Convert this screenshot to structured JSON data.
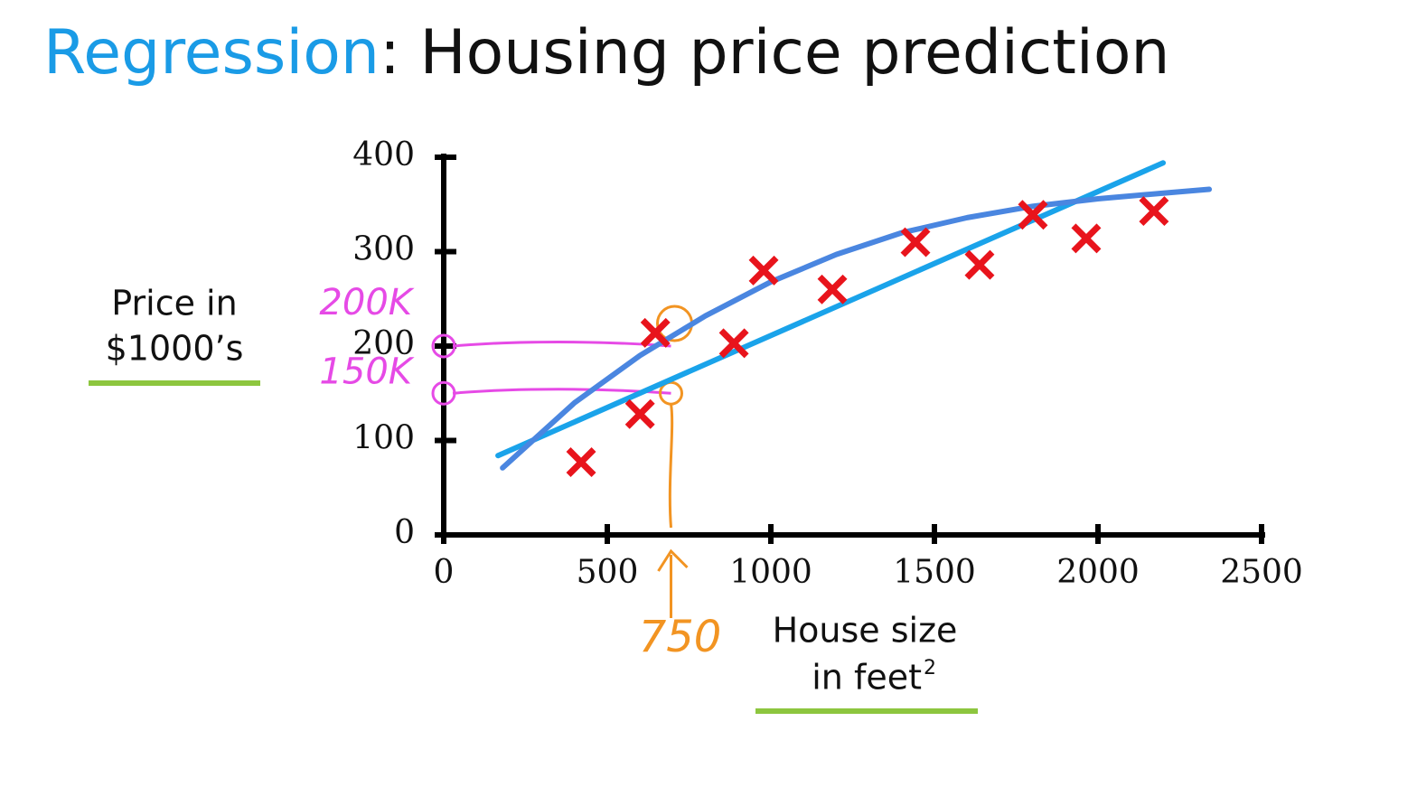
{
  "chart_data": {
    "type": "scatter",
    "title": [
      "Regression",
      ": Housing price prediction"
    ],
    "title_colors": [
      "#1a9be6",
      "#111111"
    ],
    "y_label": [
      "Price in",
      "$1000’s"
    ],
    "x_label": [
      "House size",
      "in feet",
      "2"
    ],
    "xlim": [
      0,
      2500
    ],
    "ylim": [
      0,
      400
    ],
    "xticks": [
      0,
      500,
      1000,
      1500,
      2000,
      2500
    ],
    "yticks": [
      0,
      100,
      200,
      300,
      400
    ],
    "series": [
      {
        "kind": "marker",
        "color": "#e8141c",
        "x": [
          420,
          600,
          647,
          887,
          978,
          1188,
          1442,
          1638,
          1801,
          1964,
          2171
        ],
        "values": [
          77,
          128,
          214,
          203,
          280,
          260,
          310,
          286,
          339,
          314,
          343
        ]
      },
      {
        "kind": "line",
        "color": "#1aa3ea",
        "x": [
          166,
          2199
        ],
        "values": [
          84,
          394
        ]
      },
      {
        "kind": "line",
        "color": "#4a86e0",
        "x": [
          180,
          400,
          600,
          800,
          1000,
          1200,
          1400,
          1600,
          1800,
          2000,
          2200,
          2340
        ],
        "values": [
          71,
          140,
          190,
          232,
          268,
          297,
          320,
          336,
          348,
          356,
          362,
          366
        ]
      }
    ],
    "annotations": [
      {
        "text": "200K",
        "value": 200,
        "axis": "y",
        "color": "#e64ae6"
      },
      {
        "text": "150K",
        "value": 150,
        "axis": "y",
        "color": "#e64ae6"
      },
      {
        "text": "750",
        "value": 750,
        "axis": "x",
        "color": "#f29422"
      }
    ]
  }
}
